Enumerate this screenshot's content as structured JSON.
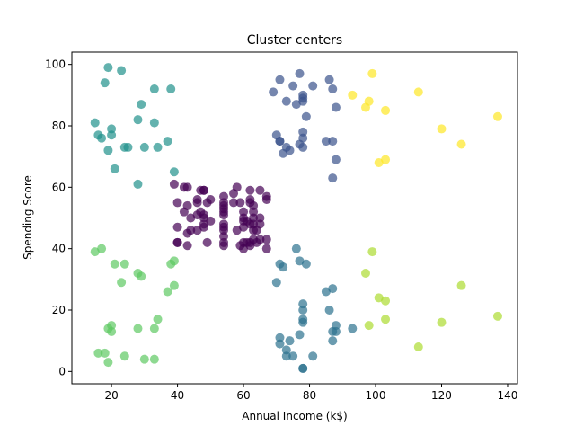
{
  "chart_data": {
    "type": "scatter",
    "title": "Cluster centers",
    "xlabel": "Annual Income (k$)",
    "ylabel": "Spending Score",
    "xlim": [
      8,
      143
    ],
    "ylim": [
      -4,
      104
    ],
    "x_ticks": [
      20,
      40,
      60,
      80,
      100,
      120,
      140
    ],
    "y_ticks": [
      0,
      20,
      40,
      60,
      80,
      100
    ],
    "grid": false,
    "legend": "none",
    "point_alpha": 0.7,
    "series": [
      {
        "color": "#440154",
        "points": [
          [
            39,
            61
          ],
          [
            40,
            55
          ],
          [
            40,
            47
          ],
          [
            40,
            42
          ],
          [
            40,
            42
          ],
          [
            42,
            52
          ],
          [
            42,
            60
          ],
          [
            43,
            54
          ],
          [
            43,
            60
          ],
          [
            43,
            45
          ],
          [
            43,
            41
          ],
          [
            44,
            50
          ],
          [
            44,
            46
          ],
          [
            46,
            51
          ],
          [
            46,
            46
          ],
          [
            46,
            56
          ],
          [
            46,
            55
          ],
          [
            47,
            52
          ],
          [
            47,
            59
          ],
          [
            48,
            51
          ],
          [
            48,
            59
          ],
          [
            48,
            50
          ],
          [
            48,
            48
          ],
          [
            48,
            59
          ],
          [
            48,
            47
          ],
          [
            49,
            55
          ],
          [
            49,
            42
          ],
          [
            50,
            49
          ],
          [
            50,
            56
          ],
          [
            54,
            47
          ],
          [
            54,
            54
          ],
          [
            54,
            53
          ],
          [
            54,
            48
          ],
          [
            54,
            52
          ],
          [
            54,
            42
          ],
          [
            54,
            51
          ],
          [
            54,
            55
          ],
          [
            54,
            41
          ],
          [
            54,
            44
          ],
          [
            54,
            57
          ],
          [
            54,
            46
          ],
          [
            57,
            58
          ],
          [
            57,
            55
          ],
          [
            58,
            60
          ],
          [
            58,
            46
          ],
          [
            59,
            55
          ],
          [
            59,
            41
          ],
          [
            60,
            49
          ],
          [
            60,
            40
          ],
          [
            60,
            42
          ],
          [
            60,
            52
          ],
          [
            60,
            47
          ],
          [
            60,
            50
          ],
          [
            61,
            42
          ],
          [
            61,
            49
          ],
          [
            62,
            41
          ],
          [
            62,
            48
          ],
          [
            62,
            59
          ],
          [
            62,
            55
          ],
          [
            62,
            56
          ],
          [
            62,
            42
          ],
          [
            63,
            50
          ],
          [
            63,
            46
          ],
          [
            63,
            43
          ],
          [
            63,
            48
          ],
          [
            63,
            52
          ],
          [
            63,
            54
          ],
          [
            64,
            42
          ],
          [
            64,
            46
          ],
          [
            65,
            48
          ],
          [
            65,
            50
          ],
          [
            65,
            43
          ],
          [
            65,
            59
          ],
          [
            67,
            43
          ],
          [
            67,
            57
          ],
          [
            67,
            56
          ],
          [
            67,
            40
          ]
        ]
      },
      {
        "color": "#3b528b",
        "points": [
          [
            69,
            91
          ],
          [
            70,
            77
          ],
          [
            71,
            95
          ],
          [
            71,
            75
          ],
          [
            71,
            75
          ],
          [
            72,
            71
          ],
          [
            73,
            88
          ],
          [
            73,
            73
          ],
          [
            74,
            72
          ],
          [
            75,
            93
          ],
          [
            76,
            87
          ],
          [
            77,
            97
          ],
          [
            77,
            74
          ],
          [
            78,
            90
          ],
          [
            78,
            88
          ],
          [
            78,
            76
          ],
          [
            78,
            89
          ],
          [
            78,
            78
          ],
          [
            78,
            73
          ],
          [
            79,
            83
          ],
          [
            81,
            93
          ],
          [
            85,
            75
          ],
          [
            86,
            95
          ],
          [
            87,
            63
          ],
          [
            87,
            75
          ],
          [
            87,
            92
          ],
          [
            88,
            86
          ],
          [
            88,
            69
          ]
        ]
      },
      {
        "color": "#2c728e",
        "points": [
          [
            70,
            29
          ],
          [
            71,
            35
          ],
          [
            71,
            11
          ],
          [
            71,
            9
          ],
          [
            72,
            34
          ],
          [
            73,
            5
          ],
          [
            73,
            7
          ],
          [
            74,
            10
          ],
          [
            75,
            5
          ],
          [
            76,
            40
          ],
          [
            77,
            12
          ],
          [
            77,
            36
          ],
          [
            78,
            22
          ],
          [
            78,
            17
          ],
          [
            78,
            20
          ],
          [
            78,
            16
          ],
          [
            78,
            1
          ],
          [
            78,
            1
          ],
          [
            79,
            35
          ],
          [
            81,
            5
          ],
          [
            85,
            26
          ],
          [
            86,
            20
          ],
          [
            87,
            27
          ],
          [
            87,
            13
          ],
          [
            87,
            10
          ],
          [
            88,
            13
          ],
          [
            88,
            15
          ],
          [
            93,
            14
          ]
        ]
      },
      {
        "color": "#21918c",
        "points": [
          [
            15,
            81
          ],
          [
            16,
            77
          ],
          [
            17,
            76
          ],
          [
            18,
            94
          ],
          [
            19,
            72
          ],
          [
            19,
            99
          ],
          [
            20,
            77
          ],
          [
            20,
            79
          ],
          [
            21,
            66
          ],
          [
            23,
            98
          ],
          [
            24,
            73
          ],
          [
            25,
            73
          ],
          [
            28,
            82
          ],
          [
            28,
            61
          ],
          [
            29,
            87
          ],
          [
            30,
            73
          ],
          [
            33,
            92
          ],
          [
            33,
            81
          ],
          [
            34,
            73
          ],
          [
            37,
            75
          ],
          [
            38,
            92
          ],
          [
            39,
            65
          ]
        ]
      },
      {
        "color": "#5ec962",
        "points": [
          [
            15,
            39
          ],
          [
            17,
            40
          ],
          [
            21,
            35
          ],
          [
            23,
            29
          ],
          [
            24,
            35
          ],
          [
            28,
            32
          ],
          [
            29,
            31
          ],
          [
            37,
            26
          ],
          [
            38,
            35
          ],
          [
            39,
            36
          ],
          [
            39,
            28
          ],
          [
            34,
            17
          ],
          [
            33,
            14
          ],
          [
            28,
            14
          ],
          [
            24,
            5
          ],
          [
            16,
            6
          ],
          [
            18,
            6
          ],
          [
            19,
            3
          ],
          [
            19,
            14
          ],
          [
            20,
            15
          ],
          [
            20,
            13
          ],
          [
            30,
            4
          ],
          [
            33,
            4
          ]
        ]
      },
      {
        "color": "#addc30",
        "points": [
          [
            97,
            32
          ],
          [
            98,
            15
          ],
          [
            99,
            39
          ],
          [
            101,
            24
          ],
          [
            103,
            17
          ],
          [
            103,
            23
          ],
          [
            113,
            8
          ],
          [
            120,
            16
          ],
          [
            126,
            28
          ],
          [
            137,
            18
          ]
        ]
      },
      {
        "color": "#fde725",
        "points": [
          [
            93,
            90
          ],
          [
            97,
            86
          ],
          [
            98,
            88
          ],
          [
            99,
            97
          ],
          [
            101,
            68
          ],
          [
            103,
            85
          ],
          [
            103,
            69
          ],
          [
            113,
            91
          ],
          [
            120,
            79
          ],
          [
            126,
            74
          ],
          [
            137,
            83
          ]
        ]
      }
    ]
  }
}
